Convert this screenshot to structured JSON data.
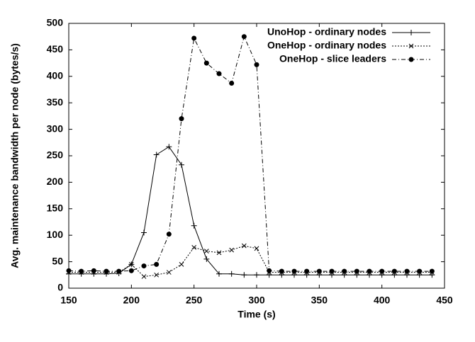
{
  "chart_data": {
    "type": "line",
    "x_label": "Time (s)",
    "y_label": "Avg. maintenance bandwidth per node (bytes/s)",
    "x": [
      150,
      160,
      170,
      180,
      190,
      200,
      210,
      220,
      230,
      240,
      250,
      260,
      270,
      280,
      290,
      300,
      310,
      320,
      330,
      340,
      350,
      360,
      370,
      380,
      390,
      400,
      410,
      420,
      430,
      440
    ],
    "series": [
      {
        "name": "UnoHop - ordinary nodes",
        "color": "#000000",
        "values": [
          27,
          27,
          27,
          27,
          28,
          45,
          105,
          252,
          267,
          233,
          118,
          55,
          27,
          27,
          25,
          25,
          25,
          25,
          25,
          25,
          25,
          25,
          25,
          25,
          25,
          25,
          25,
          25,
          25,
          25
        ]
      },
      {
        "name": "OneHop - ordinary nodes",
        "color": "#000000",
        "values": [
          30,
          30,
          30,
          30,
          30,
          45,
          22,
          25,
          30,
          45,
          77,
          70,
          67,
          72,
          80,
          75,
          30,
          30,
          30,
          30,
          30,
          30,
          30,
          30,
          30,
          30,
          30,
          30,
          30,
          30
        ]
      },
      {
        "name": "OneHop - slice leaders",
        "color": "#000000",
        "values": [
          33,
          32,
          33,
          32,
          32,
          33,
          42,
          45,
          102,
          320,
          472,
          425,
          405,
          387,
          475,
          422,
          33,
          32,
          32,
          32,
          32,
          32,
          32,
          32,
          32,
          32,
          32,
          32,
          32,
          32
        ]
      }
    ],
    "xlim": [
      150,
      450
    ],
    "xticks": [
      150,
      200,
      250,
      300,
      350,
      400,
      450
    ],
    "ylim": [
      0,
      500
    ],
    "yticks": [
      0,
      50,
      100,
      150,
      200,
      250,
      300,
      350,
      400,
      450,
      500
    ],
    "legend": "top-right"
  }
}
